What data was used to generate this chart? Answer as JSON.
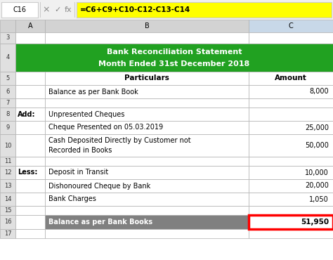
{
  "formula_bar_cell": "C16",
  "formula_bar_formula": "=C6+C9+C10-C12-C13-C14",
  "title_line1": "Bank Reconciliation Statement",
  "title_line2": "Month Ended 31st December 2018",
  "header_bg": "#21A121",
  "header_text_color": "#FFFFFF",
  "col5_particulars": "Particulars",
  "col5_amount": "Amount",
  "rows": [
    {
      "row": "6",
      "col_a": "",
      "col_b": "Balance as per Bank Book",
      "col_c": "8,000",
      "bg_b": "#FFFFFF",
      "bold_b": false
    },
    {
      "row": "7",
      "col_a": "",
      "col_b": "",
      "col_c": "",
      "bg_b": "#FFFFFF",
      "bold_b": false
    },
    {
      "row": "8",
      "col_a": "Add:",
      "col_b": "Unpresented Cheques",
      "col_c": "",
      "bg_b": "#FFFFFF",
      "bold_b": false
    },
    {
      "row": "9",
      "col_a": "",
      "col_b": "Cheque Presented on 05.03.2019",
      "col_c": "25,000",
      "bg_b": "#FFFFFF",
      "bold_b": false
    },
    {
      "row": "10",
      "col_a": "",
      "col_b": "Cash Deposited Directly by Customer not\nRecorded in Books",
      "col_c": "50,000",
      "bg_b": "#FFFFFF",
      "bold_b": false
    },
    {
      "row": "11",
      "col_a": "",
      "col_b": "",
      "col_c": "",
      "bg_b": "#FFFFFF",
      "bold_b": false
    },
    {
      "row": "12",
      "col_a": "Less:",
      "col_b": "Deposit in Transit",
      "col_c": "10,000",
      "bg_b": "#FFFFFF",
      "bold_b": false
    },
    {
      "row": "13",
      "col_a": "",
      "col_b": "Dishonoured Cheque by Bank",
      "col_c": "20,000",
      "bg_b": "#FFFFFF",
      "bold_b": false
    },
    {
      "row": "14",
      "col_a": "",
      "col_b": "Bank Charges",
      "col_c": "1,050",
      "bg_b": "#FFFFFF",
      "bold_b": false
    },
    {
      "row": "15",
      "col_a": "",
      "col_b": "",
      "col_c": "",
      "bg_b": "#FFFFFF",
      "bold_b": false
    },
    {
      "row": "16",
      "col_a": "",
      "col_b": "Balance as per Bank Books",
      "col_c": "51,950",
      "bg_b": "#808080",
      "bold_b": true
    }
  ],
  "cell_c16_border_color": "#FF0000",
  "grid_color": "#B0B0B0",
  "formula_bar_bg": "#FFFF00",
  "spreadsheet_bg": "#FFFFFF",
  "row_header_bg": "#E0E0E0",
  "toolbar_bg": "#F0F0F0",
  "col_header_bg": "#D3D3D3"
}
